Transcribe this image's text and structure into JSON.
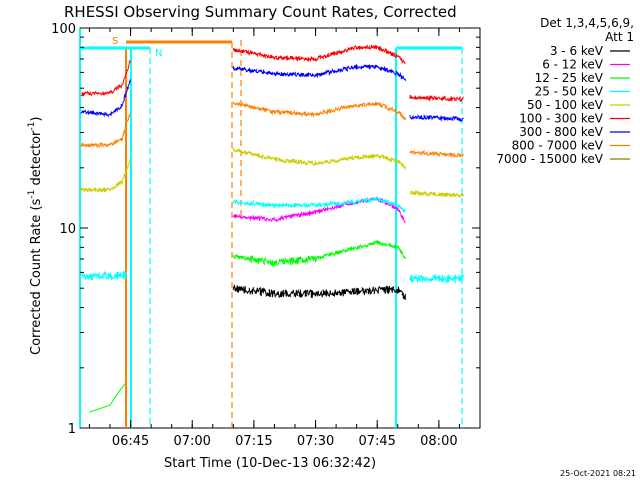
{
  "chart_data": {
    "type": "line",
    "title": "RHESSI Observing Summary Count Rates, Corrected",
    "xlabel": "Start Time (10-Dec-13 06:32:42)",
    "ylabel": "Corrected Count Rate (s⁻¹ detector⁻¹)",
    "ylabel_parts": {
      "main": "Corrected Count Rate (s",
      "exp1": "-1",
      "mid": " detector",
      "exp2": "-1",
      "end": ")"
    },
    "yscale": "log",
    "ylim": [
      1,
      100
    ],
    "ytick_labels": [
      "1",
      "10",
      "100"
    ],
    "xlim": [
      "06:32:42",
      "08:10:00"
    ],
    "xtick_labels": [
      "06:45",
      "07:00",
      "07:15",
      "07:30",
      "07:45",
      "08:00"
    ],
    "legend_header": [
      "Det 1,3,4,5,6,9,",
      "Att 1"
    ],
    "legend_placement": "right",
    "footer": "25-Oct-2021 08:21",
    "markers": [
      {
        "label": "S",
        "color": "#ff8000"
      },
      {
        "label": "N",
        "color": "#00ffff"
      }
    ],
    "series": [
      {
        "name": "3 - 6 keV",
        "color": "#000000",
        "segments": [
          {
            "x": [
              "07:10",
              "07:20",
              "07:30",
              "07:40",
              "07:45",
              "07:50",
              "07:52"
            ],
            "y": [
              5.0,
              4.7,
              4.7,
              4.8,
              4.9,
              4.9,
              4.5
            ]
          }
        ]
      },
      {
        "name": "6 - 12 keV",
        "color": "#ff00ff",
        "segments": [
          {
            "x": [
              "07:10",
              "07:20",
              "07:30",
              "07:40",
              "07:45",
              "07:50",
              "07:52"
            ],
            "y": [
              11.5,
              11.0,
              12.0,
              13.5,
              14.0,
              12.5,
              10.5
            ]
          }
        ]
      },
      {
        "name": "12 - 25 keV",
        "color": "#00ff00",
        "segments": [
          {
            "x": [
              "06:35",
              "06:40",
              "06:42",
              "06:44"
            ],
            "y": [
              1.2,
              1.3,
              1.5,
              1.7
            ]
          },
          {
            "x": [
              "07:10",
              "07:20",
              "07:30",
              "07:40",
              "07:45",
              "07:50",
              "07:52"
            ],
            "y": [
              7.2,
              6.7,
              7.0,
              8.0,
              8.5,
              8.0,
              7.0
            ]
          }
        ]
      },
      {
        "name": "25 - 50 keV",
        "color": "#00ffff",
        "segments": [
          {
            "x": [
              "06:33",
              "06:44"
            ],
            "y": [
              5.7,
              5.8
            ]
          },
          {
            "x": [
              "07:10",
              "07:20",
              "07:30",
              "07:40",
              "07:45",
              "07:50",
              "07:52"
            ],
            "y": [
              13.5,
              13.0,
              13.0,
              13.5,
              14.0,
              13.0,
              12.0
            ]
          },
          {
            "x": [
              "07:53",
              "08:06"
            ],
            "y": [
              5.6,
              5.6
            ]
          }
        ]
      },
      {
        "name": "50 - 100 keV",
        "color": "#cccc00",
        "segments": [
          {
            "x": [
              "06:33",
              "06:40",
              "06:43",
              "06:45"
            ],
            "y": [
              15.5,
              15.5,
              17.0,
              22.0
            ]
          },
          {
            "x": [
              "07:10",
              "07:20",
              "07:30",
              "07:40",
              "07:45",
              "07:50",
              "07:52"
            ],
            "y": [
              24.5,
              22.0,
              21.0,
              22.5,
              23.0,
              21.5,
              20.0
            ]
          },
          {
            "x": [
              "07:53",
              "08:06"
            ],
            "y": [
              15.0,
              14.5
            ]
          }
        ]
      },
      {
        "name": "100 - 300 keV",
        "color": "#ff0000",
        "segments": [
          {
            "x": [
              "06:33",
              "06:40",
              "06:43",
              "06:45"
            ],
            "y": [
              47.0,
              47.0,
              52.0,
              68.0
            ]
          },
          {
            "x": [
              "07:10",
              "07:20",
              "07:30",
              "07:40",
              "07:45",
              "07:50",
              "07:52"
            ],
            "y": [
              78.0,
              71.0,
              70.0,
              80.0,
              80.0,
              72.0,
              66.0
            ]
          },
          {
            "x": [
              "07:53",
              "08:06"
            ],
            "y": [
              45.0,
              44.0
            ]
          }
        ]
      },
      {
        "name": "300 - 800 keV",
        "color": "#0000ff",
        "segments": [
          {
            "x": [
              "06:33",
              "06:40",
              "06:43",
              "06:45"
            ],
            "y": [
              38.0,
              37.0,
              41.0,
              55.0
            ]
          },
          {
            "x": [
              "07:10",
              "07:20",
              "07:30",
              "07:40",
              "07:45",
              "07:50",
              "07:52"
            ],
            "y": [
              63.0,
              59.0,
              58.0,
              64.0,
              64.0,
              59.0,
              55.0
            ]
          },
          {
            "x": [
              "07:53",
              "08:06"
            ],
            "y": [
              36.0,
              35.0
            ]
          }
        ]
      },
      {
        "name": "800 - 7000 keV",
        "color": "#ff8000",
        "segments": [
          {
            "x": [
              "06:33",
              "06:40",
              "06:43",
              "06:45"
            ],
            "y": [
              26.0,
              26.0,
              28.0,
              38.0
            ]
          },
          {
            "x": [
              "07:10",
              "07:20",
              "07:30",
              "07:40",
              "07:45",
              "07:50",
              "07:52"
            ],
            "y": [
              42.0,
              38.0,
              37.0,
              41.0,
              42.0,
              38.0,
              35.0
            ]
          },
          {
            "x": [
              "07:53",
              "08:06"
            ],
            "y": [
              24.0,
              23.0
            ]
          }
        ]
      },
      {
        "name": "7000 - 15000 keV",
        "color": "#808000",
        "segments": []
      }
    ]
  }
}
